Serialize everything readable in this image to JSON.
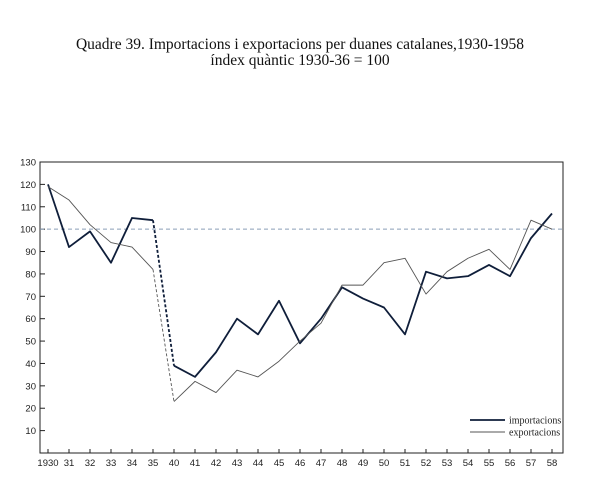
{
  "chart_data": {
    "type": "line",
    "title": "Quadre 39. Importacions i exportacions per duanes catalanes,1930-1958",
    "subtitle": "índex quàntic 1930-36 = 100",
    "xlabel": "",
    "ylabel": "",
    "x_tick_labels": [
      "1930",
      "31",
      "32",
      "33",
      "34",
      "35",
      "40",
      "41",
      "42",
      "43",
      "44",
      "45",
      "46",
      "47",
      "48",
      "49",
      "50",
      "51",
      "52",
      "53",
      "54",
      "55",
      "56",
      "57",
      "58"
    ],
    "x": [
      1930,
      1931,
      1932,
      1933,
      1934,
      1935,
      1940,
      1941,
      1942,
      1943,
      1944,
      1945,
      1946,
      1947,
      1948,
      1949,
      1950,
      1951,
      1952,
      1953,
      1954,
      1955,
      1956,
      1957,
      1958
    ],
    "ylim": [
      0,
      130
    ],
    "y_ticks": [
      10,
      20,
      30,
      40,
      50,
      60,
      70,
      80,
      90,
      100,
      110,
      120,
      130
    ],
    "reference_line": 100,
    "grid": false,
    "legend_position": "bottom-right",
    "series": [
      {
        "name": "importacions",
        "color": "#0f1e3a",
        "width": "thick",
        "values": [
          120,
          92,
          99,
          85,
          105,
          104,
          39,
          34,
          45,
          60,
          53,
          68,
          49,
          60,
          74,
          69,
          65,
          53,
          81,
          78,
          79,
          84,
          79,
          96,
          107
        ]
      },
      {
        "name": "exportacions",
        "color": "#555555",
        "width": "thin",
        "values": [
          119,
          113,
          102,
          94,
          92,
          82,
          23,
          32,
          27,
          37,
          34,
          41,
          50,
          58,
          75,
          75,
          85,
          87,
          71,
          81,
          87,
          91,
          82,
          104,
          100
        ]
      }
    ]
  }
}
